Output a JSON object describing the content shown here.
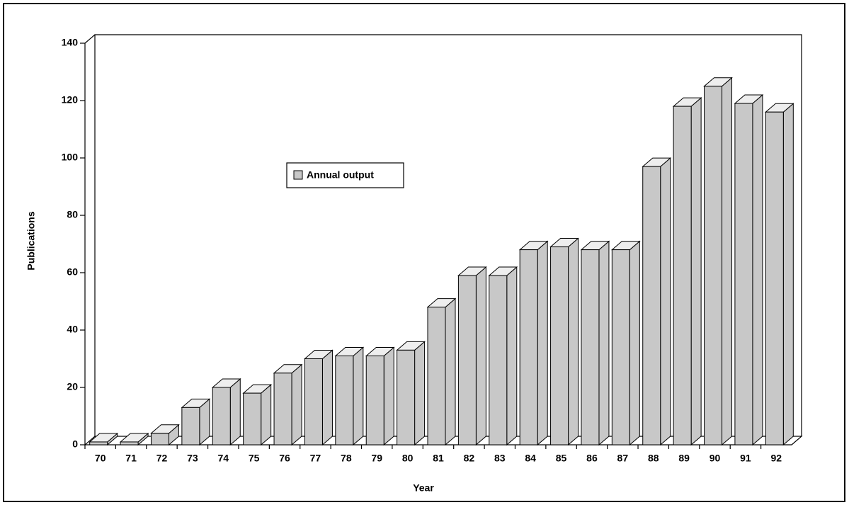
{
  "chart_data": {
    "type": "bar3d",
    "x_label": "Year",
    "y_label": "Publications",
    "categories": [
      "70",
      "71",
      "72",
      "73",
      "74",
      "75",
      "76",
      "77",
      "78",
      "79",
      "80",
      "81",
      "82",
      "83",
      "84",
      "85",
      "86",
      "87",
      "88",
      "89",
      "90",
      "91",
      "92"
    ],
    "series": [
      {
        "name": "Annual output",
        "color": "#c8c8c8",
        "values": [
          1,
          1,
          4,
          13,
          20,
          18,
          25,
          30,
          31,
          31,
          33,
          48,
          59,
          59,
          68,
          69,
          68,
          68,
          97,
          118,
          125,
          119,
          116
        ]
      }
    ],
    "ylim": [
      0,
      140
    ],
    "yticks": [
      0,
      20,
      40,
      60,
      80,
      100,
      120,
      140
    ]
  }
}
